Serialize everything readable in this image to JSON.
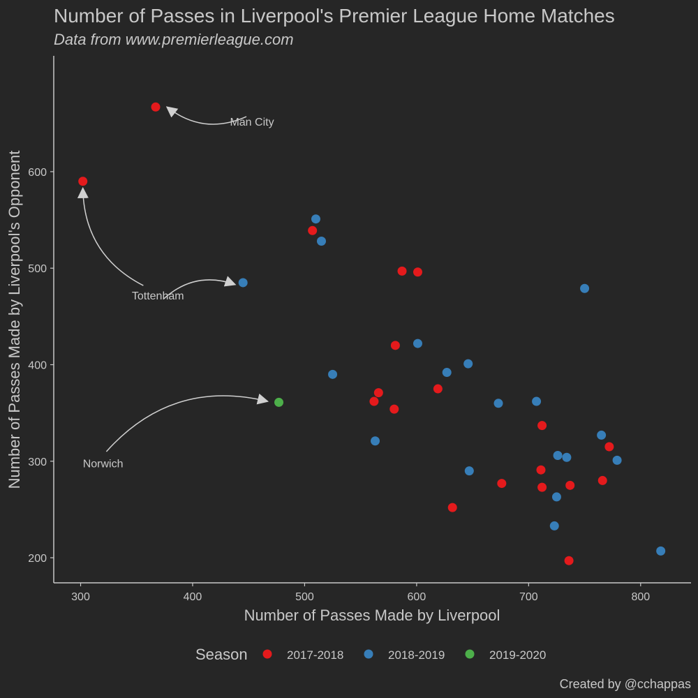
{
  "chart_data": {
    "type": "scatter",
    "title": "Number of Passes in Liverpool's Premier League Home Matches",
    "subtitle": "Data from www.premierleague.com",
    "xlabel": "Number of Passes Made by Liverpool",
    "ylabel": "Number of Passes Made by Liverpool's Opponent",
    "caption": "Created by @cchappas",
    "xlim": [
      276,
      845
    ],
    "ylim": [
      174,
      720
    ],
    "xticks": [
      300,
      400,
      500,
      600,
      700,
      800
    ],
    "yticks": [
      200,
      300,
      400,
      500,
      600
    ],
    "grid": false,
    "legend": {
      "title": "Season",
      "position": "bottom"
    },
    "series": [
      {
        "name": "2017-2018",
        "color": "#e41a1c",
        "points": [
          {
            "x": 367,
            "y": 667
          },
          {
            "x": 302,
            "y": 590
          },
          {
            "x": 507,
            "y": 539
          },
          {
            "x": 587,
            "y": 497
          },
          {
            "x": 601,
            "y": 496
          },
          {
            "x": 581,
            "y": 420
          },
          {
            "x": 619,
            "y": 375
          },
          {
            "x": 566,
            "y": 371
          },
          {
            "x": 562,
            "y": 362
          },
          {
            "x": 580,
            "y": 354
          },
          {
            "x": 712,
            "y": 337
          },
          {
            "x": 772,
            "y": 315
          },
          {
            "x": 711,
            "y": 291
          },
          {
            "x": 766,
            "y": 280
          },
          {
            "x": 676,
            "y": 277
          },
          {
            "x": 737,
            "y": 275
          },
          {
            "x": 712,
            "y": 273
          },
          {
            "x": 632,
            "y": 252
          },
          {
            "x": 736,
            "y": 197
          }
        ]
      },
      {
        "name": "2018-2019",
        "color": "#377eb8",
        "points": [
          {
            "x": 510,
            "y": 551
          },
          {
            "x": 515,
            "y": 528
          },
          {
            "x": 445,
            "y": 485
          },
          {
            "x": 750,
            "y": 479
          },
          {
            "x": 601,
            "y": 422
          },
          {
            "x": 646,
            "y": 401
          },
          {
            "x": 627,
            "y": 392
          },
          {
            "x": 525,
            "y": 390
          },
          {
            "x": 673,
            "y": 360
          },
          {
            "x": 707,
            "y": 362
          },
          {
            "x": 765,
            "y": 327
          },
          {
            "x": 563,
            "y": 321
          },
          {
            "x": 726,
            "y": 306
          },
          {
            "x": 734,
            "y": 304
          },
          {
            "x": 779,
            "y": 301
          },
          {
            "x": 647,
            "y": 290
          },
          {
            "x": 725,
            "y": 263
          },
          {
            "x": 723,
            "y": 233
          },
          {
            "x": 818,
            "y": 207
          }
        ]
      },
      {
        "name": "2019-2020",
        "color": "#4daf4a",
        "points": [
          {
            "x": 477,
            "y": 361
          }
        ]
      }
    ],
    "annotations": [
      {
        "label": "Man City",
        "text_x": 453,
        "text_y": 652,
        "arrow_from": [
          448,
          657
        ],
        "arrow_to": [
          377,
          667
        ]
      },
      {
        "label": "Tottenham",
        "text_x": 369,
        "text_y": 472,
        "arrow_from": [
          356,
          482
        ],
        "arrow_to": [
          302,
          583
        ]
      },
      {
        "label": "Tottenham",
        "text_x": 369,
        "text_y": 472,
        "arrow_from": [
          374,
          468
        ],
        "arrow_to": [
          438,
          483
        ]
      },
      {
        "label": "Norwich",
        "text_x": 320,
        "text_y": 298,
        "arrow_from": [
          323,
          310
        ],
        "arrow_to": [
          467,
          362
        ]
      }
    ]
  }
}
